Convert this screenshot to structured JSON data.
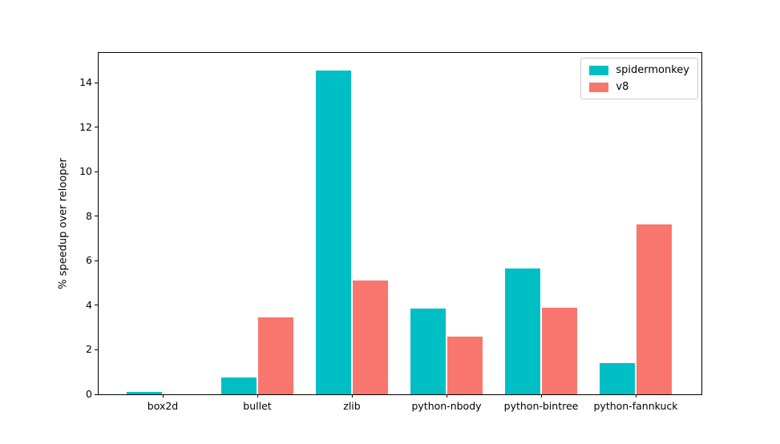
{
  "chart_data": {
    "type": "bar",
    "title": "",
    "xlabel": "",
    "ylabel": "% speedup over relooper",
    "categories": [
      "box2d",
      "bullet",
      "zlib",
      "python-nbody",
      "python-bintree",
      "python-fannkuck"
    ],
    "series": [
      {
        "name": "spidermonkey",
        "color": "#00bfc4",
        "values": [
          0.1,
          0.75,
          14.55,
          3.85,
          5.65,
          1.4
        ]
      },
      {
        "name": "v8",
        "color": "#f8766d",
        "values": [
          0,
          3.45,
          5.1,
          2.6,
          3.9,
          7.65
        ]
      }
    ],
    "yticks": [
      0,
      2,
      4,
      6,
      8,
      10,
      12,
      14
    ],
    "ylim": [
      0,
      15.35
    ],
    "grid": false,
    "legend_position": "upper right",
    "background_color": "#ffffff",
    "spine_color": "#000000"
  }
}
